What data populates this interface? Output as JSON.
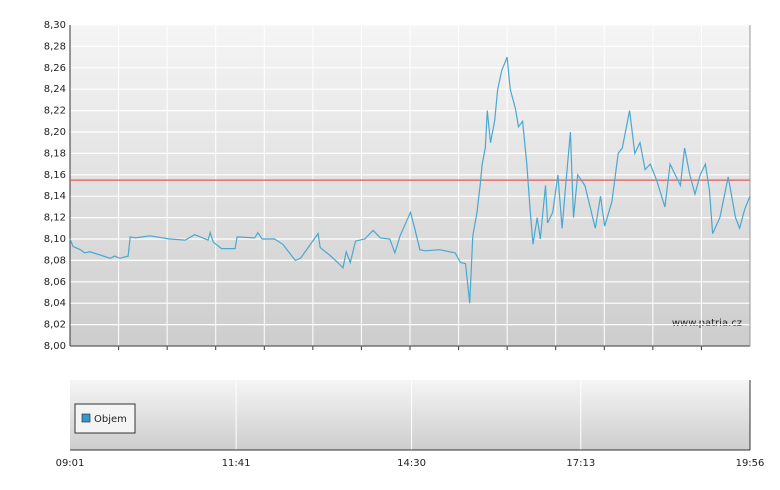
{
  "chart_data": {
    "type": "line",
    "x": [
      "09:01",
      "09:04",
      "09:11",
      "09:15",
      "09:20",
      "09:30",
      "09:40",
      "09:44",
      "09:49",
      "09:57",
      "09:59",
      "10:04",
      "10:18",
      "10:37",
      "10:52",
      "11:01",
      "11:14",
      "11:16",
      "11:19",
      "11:27",
      "11:40",
      "11:42",
      "11:59",
      "12:02",
      "12:06",
      "12:18",
      "12:26",
      "12:38",
      "12:43",
      "13:00",
      "13:02",
      "13:11",
      "13:19",
      "13:24",
      "13:27",
      "13:31",
      "13:36",
      "13:45",
      "13:53",
      "14:00",
      "14:09",
      "14:14",
      "14:19",
      "14:29",
      "14:33",
      "14:38",
      "14:43",
      "14:57",
      "15:12",
      "15:17",
      "15:22",
      "15:26",
      "15:29",
      "15:33",
      "15:36",
      "15:38",
      "15:41",
      "15:43",
      "15:46",
      "15:50",
      "15:53",
      "15:57",
      "16:00",
      "16:02",
      "16:05",
      "16:10",
      "16:13",
      "16:17",
      "16:21",
      "16:24",
      "16:27",
      "16:31",
      "16:34",
      "16:39",
      "16:41",
      "16:46",
      "16:51",
      "16:55",
      "16:58",
      "17:03",
      "17:06",
      "17:10",
      "17:17",
      "17:27",
      "17:32",
      "17:36",
      "17:43",
      "17:49",
      "17:53",
      "18:00",
      "18:05",
      "18:10",
      "18:15",
      "18:20",
      "18:26",
      "18:34",
      "18:39",
      "18:49",
      "18:53",
      "18:58",
      "19:03",
      "19:08",
      "19:13",
      "19:17",
      "19:20",
      "19:27",
      "19:35",
      "19:42",
      "19:46",
      "19:51",
      "19:56"
    ],
    "series": [
      {
        "color": "#4aa8d0",
        "values": [
          8.1,
          8.093,
          8.09,
          8.087,
          8.088,
          8.085,
          8.082,
          8.084,
          8.082,
          8.084,
          8.102,
          8.101,
          8.103,
          8.1,
          8.099,
          8.104,
          8.099,
          8.106,
          8.097,
          8.091,
          8.091,
          8.102,
          8.101,
          8.106,
          8.1,
          8.1,
          8.095,
          8.08,
          8.082,
          8.105,
          8.092,
          8.085,
          8.078,
          8.073,
          8.088,
          8.078,
          8.098,
          8.1,
          8.108,
          8.101,
          8.1,
          8.087,
          8.103,
          8.125,
          8.11,
          8.09,
          8.089,
          8.09,
          8.087,
          8.078,
          8.077,
          8.04,
          8.103,
          8.125,
          8.15,
          8.17,
          8.185,
          8.22,
          8.19,
          8.21,
          8.24,
          8.258,
          8.265,
          8.27,
          8.24,
          8.222,
          8.205,
          8.21,
          8.17,
          8.13,
          8.095,
          8.12,
          8.1,
          8.15,
          8.115,
          8.125,
          8.16,
          8.11,
          8.145,
          8.2,
          8.12,
          8.16,
          8.15,
          8.11,
          8.14,
          8.112,
          8.135,
          8.18,
          8.185,
          8.22,
          8.18,
          8.19,
          8.165,
          8.17,
          8.155,
          8.13,
          8.17,
          8.15,
          8.185,
          8.16,
          8.142,
          8.16,
          8.17,
          8.145,
          8.105,
          8.12,
          8.158,
          8.12,
          8.11,
          8.128,
          8.14
        ]
      }
    ],
    "xlim": [
      "09:01",
      "19:56"
    ],
    "xticks": [
      "09:01",
      "11:41",
      "14:30",
      "17:13",
      "19:56"
    ],
    "x_grid_divisions": 14,
    "ylim": [
      8.0,
      8.3
    ],
    "yticks": [
      {
        "value": 8.0,
        "label": "8,00"
      },
      {
        "value": 8.02,
        "label": "8,02"
      },
      {
        "value": 8.04,
        "label": "8,04"
      },
      {
        "value": 8.06,
        "label": "8,06"
      },
      {
        "value": 8.08,
        "label": "8,08"
      },
      {
        "value": 8.1,
        "label": "8,10"
      },
      {
        "value": 8.12,
        "label": "8,12"
      },
      {
        "value": 8.14,
        "label": "8,14"
      },
      {
        "value": 8.16,
        "label": "8,16"
      },
      {
        "value": 8.18,
        "label": "8,18"
      },
      {
        "value": 8.2,
        "label": "8,20"
      },
      {
        "value": 8.22,
        "label": "8,22"
      },
      {
        "value": 8.24,
        "label": "8,24"
      },
      {
        "value": 8.26,
        "label": "8,26"
      },
      {
        "value": 8.28,
        "label": "8,28"
      },
      {
        "value": 8.3,
        "label": "8,30"
      }
    ],
    "reference_line": {
      "value": 8.155,
      "color": "#e05a5a"
    },
    "watermark": "www.patria.cz",
    "volume_panel": {
      "legend": "Objem",
      "color": "#3399cc"
    },
    "grid": true
  }
}
